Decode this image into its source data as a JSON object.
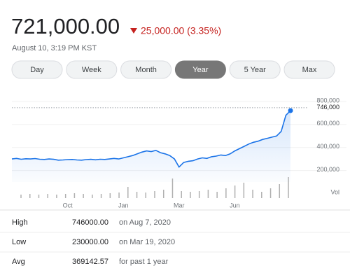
{
  "header": {
    "price": "721,000.00",
    "change": "25,000.00 (3.35%)",
    "timestamp": "August 10, 3:19 PM KST"
  },
  "ranges": [
    "Day",
    "Week",
    "Month",
    "Year",
    "5 Year",
    "Max"
  ],
  "selected_range": "Year",
  "chart_data": {
    "type": "line",
    "categories": [
      null,
      null,
      null,
      null,
      null,
      null,
      null,
      null,
      null,
      null,
      null,
      null,
      "Oct",
      null,
      null,
      null,
      null,
      null,
      null,
      null,
      null,
      null,
      null,
      null,
      "Jan",
      null,
      null,
      null,
      null,
      null,
      null,
      null,
      null,
      null,
      null,
      null,
      "Mar",
      null,
      null,
      null,
      null,
      null,
      null,
      null,
      null,
      null,
      null,
      null,
      "Jun",
      null,
      null,
      null,
      null,
      null,
      null,
      null,
      null,
      null,
      null,
      null,
      null
    ],
    "series": [
      {
        "color": "#1a73e8",
        "values": [
          300000,
          305000,
          298000,
          302000,
          300000,
          304000,
          298000,
          296000,
          300000,
          297000,
          290000,
          292000,
          295000,
          296000,
          292000,
          290000,
          295000,
          297000,
          293000,
          298000,
          296000,
          300000,
          305000,
          300000,
          310000,
          320000,
          330000,
          345000,
          360000,
          370000,
          365000,
          375000,
          355000,
          345000,
          330000,
          300000,
          230000,
          270000,
          280000,
          285000,
          300000,
          310000,
          305000,
          320000,
          325000,
          335000,
          330000,
          345000,
          370000,
          390000,
          410000,
          430000,
          445000,
          455000,
          470000,
          480000,
          490000,
          500000,
          540000,
          680000,
          721000
        ]
      }
    ],
    "volume": {
      "name": "Vol",
      "color": "#b0b0b0",
      "values": [
        5,
        6,
        5,
        6,
        5,
        6,
        7,
        6,
        5,
        6,
        7,
        8,
        16,
        9,
        8,
        10,
        12,
        28,
        10,
        9,
        10,
        12,
        9,
        14,
        18,
        22,
        12,
        9,
        14,
        20,
        30
      ]
    },
    "annotation": {
      "value": 746000,
      "label": "746,000"
    },
    "ylim": [
      100000,
      800000
    ],
    "yticks": [
      {
        "value": 200000,
        "label": "200,000"
      },
      {
        "value": 400000,
        "label": "400,000"
      },
      {
        "value": 600000,
        "label": "600,000"
      },
      {
        "value": 800000,
        "label": "800,000"
      }
    ],
    "grid": true
  },
  "stats": {
    "rows": [
      [
        "High",
        "746000.00",
        "on Aug 7, 2020"
      ],
      [
        "Low",
        "230000.00",
        "on Mar 19, 2020"
      ],
      [
        "Avg",
        "369142.57",
        "for past 1 year"
      ]
    ]
  }
}
